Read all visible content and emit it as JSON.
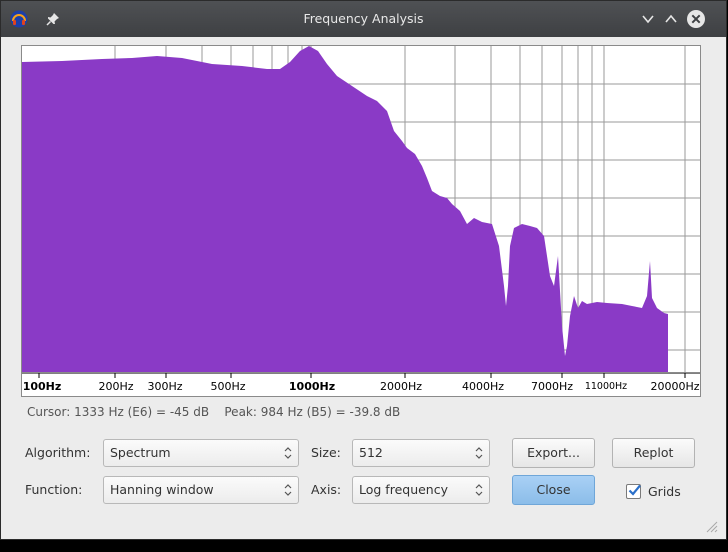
{
  "window": {
    "title": "Frequency Analysis"
  },
  "plot": {
    "x_axis_labels": [
      {
        "text": "100Hz",
        "bold": true
      },
      {
        "text": "200Hz",
        "bold": false
      },
      {
        "text": "300Hz",
        "bold": false
      },
      {
        "text": "500Hz",
        "bold": false
      },
      {
        "text": "1000Hz",
        "bold": true
      },
      {
        "text": "2000Hz",
        "bold": false
      },
      {
        "text": "4000Hz",
        "bold": false
      },
      {
        "text": "7000Hz",
        "bold": false
      },
      {
        "text": "11000Hz",
        "bold": false
      },
      {
        "text": "20000Hz",
        "bold": false
      }
    ],
    "fill_color": "#8a3ac6",
    "grid_color": "#9a9a9a"
  },
  "info": {
    "cursor": "Cursor: 1333 Hz (E6) = -45 dB",
    "peak": "Peak: 984 Hz (B5) = -39.8 dB"
  },
  "controls": {
    "algorithm_label": "Algorithm:",
    "algorithm_value": "Spectrum",
    "function_label": "Function:",
    "function_value": "Hanning window",
    "size_label": "Size:",
    "size_value": "512",
    "axis_label": "Axis:",
    "axis_value": "Log frequency",
    "export_label": "Export...",
    "replot_label": "Replot",
    "close_label": "Close",
    "grids_label": "Grids",
    "grids_checked": true
  }
}
